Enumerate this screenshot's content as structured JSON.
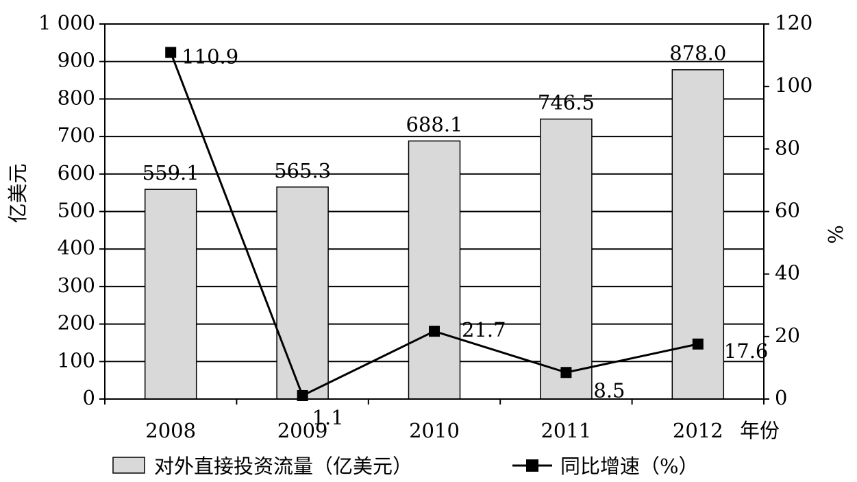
{
  "chart_data": {
    "type": "bar",
    "categories": [
      "2008",
      "2009",
      "2010",
      "2011",
      "2012"
    ],
    "x_unit_label": "年份",
    "series": [
      {
        "name": "对外直接投资流量（亿美元）",
        "type": "bar",
        "axis": "left",
        "values": [
          559.1,
          565.3,
          688.1,
          746.5,
          878.0
        ],
        "labels": [
          "559.1",
          "565.3",
          "688.1",
          "746.5",
          "878.0"
        ],
        "color": "#d9d9d9"
      },
      {
        "name": "同比增速（%）",
        "type": "line",
        "axis": "right",
        "values": [
          110.9,
          1.1,
          21.7,
          8.5,
          17.6
        ],
        "labels": [
          "110.9",
          "1.1",
          "21.7",
          "8.5",
          "17.6"
        ],
        "color": "#000000"
      }
    ],
    "y_left": {
      "label": "亿美元",
      "range": [
        0,
        1000
      ],
      "ticks": [
        0,
        100,
        200,
        300,
        400,
        500,
        600,
        700,
        800,
        900,
        1000
      ],
      "tick_labels": [
        "0",
        "100",
        "200",
        "300",
        "400",
        "500",
        "600",
        "700",
        "800",
        "900",
        "1 000"
      ]
    },
    "y_right": {
      "label": "%",
      "range": [
        0,
        120
      ],
      "ticks": [
        0,
        20,
        40,
        60,
        80,
        100,
        120
      ],
      "tick_labels": [
        "0",
        "20",
        "40",
        "60",
        "80",
        "100",
        "120"
      ]
    },
    "grid": true,
    "legend_position": "bottom"
  }
}
